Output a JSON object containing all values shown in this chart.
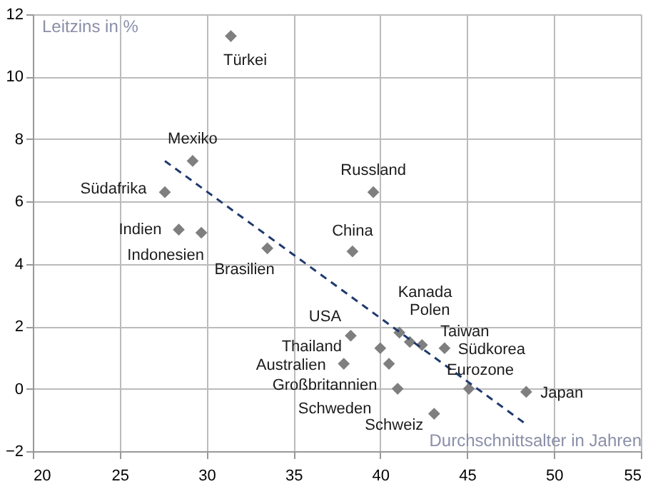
{
  "chart_data": {
    "type": "scatter",
    "xlabel": "Durchschnittsalter in Jahren",
    "ylabel": "Leitzins in %",
    "xlim": [
      20,
      55
    ],
    "xticks": [
      20,
      25,
      30,
      35,
      40,
      45,
      50,
      55
    ],
    "ylim": [
      -2,
      12
    ],
    "yticks": [
      -2,
      0,
      2,
      4,
      6,
      8,
      10,
      12
    ],
    "grid": true,
    "marker": "diamond",
    "series": [
      {
        "type": "scatter",
        "color": "#7f7f7f",
        "x": [
          31.4,
          29.2,
          27.6,
          28.4,
          29.7,
          33.5,
          39.6,
          38.4,
          38.3,
          41.1,
          41.7,
          42.4,
          43.7,
          40.0,
          37.9,
          40.5,
          41.0,
          45.1,
          48.4,
          43.1
        ],
        "values": [
          11.3,
          7.3,
          6.3,
          5.1,
          5.0,
          4.5,
          6.3,
          4.4,
          1.7,
          1.8,
          1.5,
          1.4,
          1.3,
          1.3,
          0.8,
          0.8,
          0.0,
          0.0,
          -0.1,
          -0.8
        ]
      },
      {
        "type": "line",
        "marker": "none",
        "color": "#1f3a6e",
        "line_style": "dashed",
        "x": [
          27.6,
          48.3
        ],
        "values": [
          7.3,
          -1.1
        ]
      }
    ],
    "annotations": [
      {
        "text": "Türkei",
        "x": 31.4,
        "y": 11.3
      },
      {
        "text": "Mexiko",
        "x": 29.2,
        "y": 7.3
      },
      {
        "text": "Südafrika",
        "x": 27.6,
        "y": 6.3
      },
      {
        "text": "Indien",
        "x": 28.4,
        "y": 5.1
      },
      {
        "text": "Indonesien",
        "x": 29.7,
        "y": 5.0
      },
      {
        "text": "Brasilien",
        "x": 33.5,
        "y": 4.5
      },
      {
        "text": "Russland",
        "x": 39.6,
        "y": 6.3
      },
      {
        "text": "China",
        "x": 38.4,
        "y": 4.4
      },
      {
        "text": "USA",
        "x": 38.3,
        "y": 1.7
      },
      {
        "text": "Kanada",
        "x": 41.1,
        "y": 1.8
      },
      {
        "text": "Polen",
        "x": 41.7,
        "y": 1.5
      },
      {
        "text": "Taiwan",
        "x": 42.4,
        "y": 1.4
      },
      {
        "text": "Südkorea",
        "x": 43.7,
        "y": 1.3
      },
      {
        "text": "Thailand",
        "x": 40.0,
        "y": 1.3
      },
      {
        "text": "Australien",
        "x": 37.9,
        "y": 0.8
      },
      {
        "text": "Großbritannien",
        "x": 40.5,
        "y": 0.8
      },
      {
        "text": "Schweden",
        "x": 41.0,
        "y": 0.0
      },
      {
        "text": "Eurozone",
        "x": 45.1,
        "y": 0.0
      },
      {
        "text": "Japan",
        "x": 48.4,
        "y": -0.1
      },
      {
        "text": "Schweiz",
        "x": 43.1,
        "y": -0.8
      }
    ]
  }
}
